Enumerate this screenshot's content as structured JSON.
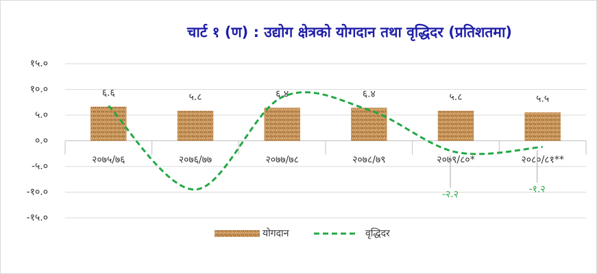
{
  "chart_data": {
    "type": "bar_line",
    "title": "चार्ट १ (ण) : उद्योग क्षेत्रको योगदान तथा वृद्धिदर (प्रतिशतमा)",
    "categories": [
      "२०७५/७६",
      "२०७६/७७",
      "२०७७/७८",
      "२०७८/७९",
      "२०७९/८०*",
      "२०८०/८१**"
    ],
    "series": [
      {
        "name": "योगदान",
        "kind": "bar",
        "color": "#c8955a",
        "values": [
          6.6,
          5.8,
          6.4,
          6.4,
          5.8,
          5.5
        ],
        "value_labels": [
          "६.६",
          "५.८",
          "६.४",
          "६.४",
          "५.८",
          "५.५"
        ]
      },
      {
        "name": "वृद्धिदर",
        "kind": "line",
        "color": "#22a845",
        "values": [
          6.8,
          -9.5,
          8.5,
          6.0,
          -2.2,
          -1.2
        ],
        "value_labels": [
          null,
          null,
          null,
          null,
          "-२.२",
          "-१.२"
        ]
      }
    ],
    "ylim": [
      -15,
      15
    ],
    "yticks": [
      {
        "value": -15,
        "label": "-१५.०"
      },
      {
        "value": -10,
        "label": "-१०.०"
      },
      {
        "value": -5,
        "label": "-५.०"
      },
      {
        "value": 0,
        "label": "०.०"
      },
      {
        "value": 5,
        "label": "५.०"
      },
      {
        "value": 10,
        "label": "१०.०"
      },
      {
        "value": 15,
        "label": "१५.०"
      }
    ],
    "grid": true,
    "legend": "bottom"
  }
}
